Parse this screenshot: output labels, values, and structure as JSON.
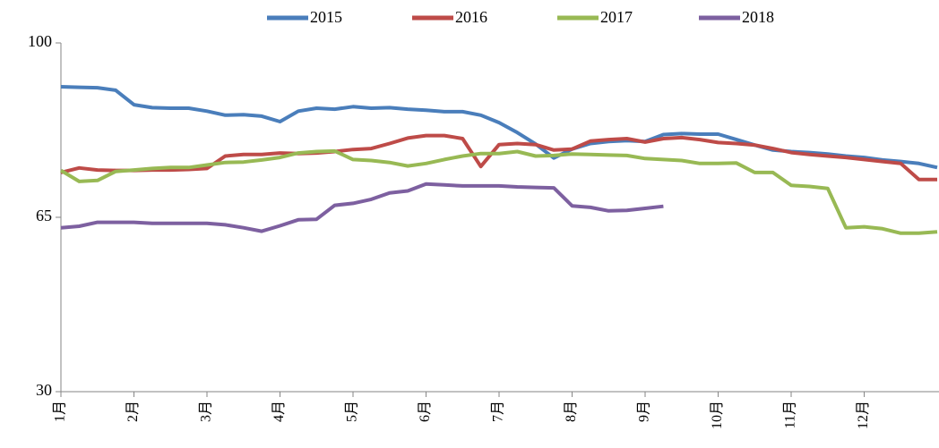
{
  "chart_data": {
    "type": "line",
    "categories": [
      "1月",
      null,
      null,
      null,
      "2月",
      null,
      null,
      null,
      "3月",
      null,
      null,
      null,
      "4月",
      null,
      null,
      null,
      "5月",
      null,
      null,
      null,
      "6月",
      null,
      null,
      null,
      "7月",
      null,
      null,
      null,
      "8月",
      null,
      null,
      null,
      "9月",
      null,
      null,
      null,
      "10月",
      null,
      null,
      null,
      "11月",
      null,
      null,
      null,
      "12月",
      null,
      null,
      null,
      null
    ],
    "series": [
      {
        "name": "2015",
        "color": "#4a7ebb",
        "values": [
          91.2,
          91.1,
          91.0,
          90.5,
          87.6,
          87.0,
          86.9,
          86.9,
          86.3,
          85.5,
          85.6,
          85.3,
          84.2,
          86.3,
          86.9,
          86.7,
          87.2,
          86.9,
          87.0,
          86.7,
          86.5,
          86.2,
          86.2,
          85.5,
          84.0,
          82.0,
          79.7,
          76.9,
          78.7,
          79.8,
          80.2,
          80.4,
          80.2,
          81.6,
          81.8,
          81.7,
          81.7,
          80.6,
          79.5,
          78.5,
          78.2,
          78.0,
          77.7,
          77.3,
          77.0,
          76.5,
          76.2,
          75.8,
          75.0
        ]
      },
      {
        "name": "2016",
        "color": "#be4b48",
        "values": [
          74.0,
          74.9,
          74.5,
          74.4,
          74.4,
          74.5,
          74.5,
          74.6,
          74.8,
          77.3,
          77.6,
          77.6,
          77.9,
          77.8,
          77.9,
          78.2,
          78.6,
          78.8,
          79.8,
          80.9,
          81.4,
          81.4,
          80.8,
          75.2,
          79.6,
          79.8,
          79.6,
          78.5,
          78.7,
          80.3,
          80.6,
          80.8,
          80.1,
          80.8,
          81.0,
          80.6,
          80.0,
          79.8,
          79.5,
          78.8,
          78.0,
          77.6,
          77.3,
          77.0,
          76.6,
          76.2,
          75.8,
          72.6,
          72.6
        ]
      },
      {
        "name": "2017",
        "color": "#98b954",
        "values": [
          74.4,
          72.2,
          72.4,
          74.2,
          74.5,
          74.8,
          75.0,
          75.0,
          75.5,
          76.0,
          76.1,
          76.5,
          77.0,
          77.9,
          78.2,
          78.3,
          76.6,
          76.4,
          76.0,
          75.3,
          75.8,
          76.6,
          77.3,
          77.8,
          77.8,
          78.2,
          77.3,
          77.4,
          77.7,
          77.6,
          77.5,
          77.4,
          76.8,
          76.6,
          76.4,
          75.8,
          75.8,
          75.9,
          74.0,
          74.0,
          71.4,
          71.2,
          70.8,
          62.9,
          63.1,
          62.7,
          61.8,
          61.8,
          62.1
        ]
      },
      {
        "name": "2018",
        "color": "#7d60a0",
        "values": [
          62.9,
          63.2,
          64.0,
          64.0,
          64.0,
          63.8,
          63.8,
          63.8,
          63.8,
          63.5,
          62.9,
          62.2,
          63.3,
          64.5,
          64.6,
          67.4,
          67.8,
          68.6,
          69.9,
          70.3,
          71.7,
          71.5,
          71.3,
          71.3,
          71.3,
          71.1,
          71.0,
          70.9,
          67.3,
          67.0,
          66.3,
          66.4,
          66.8,
          67.2,
          null,
          null,
          null,
          null,
          null,
          null,
          null,
          null,
          null,
          null,
          null,
          null,
          null,
          null,
          null
        ]
      }
    ],
    "ylim": [
      30,
      100
    ],
    "yticks": [
      30,
      65,
      100
    ],
    "grid": false,
    "legend": "top"
  }
}
